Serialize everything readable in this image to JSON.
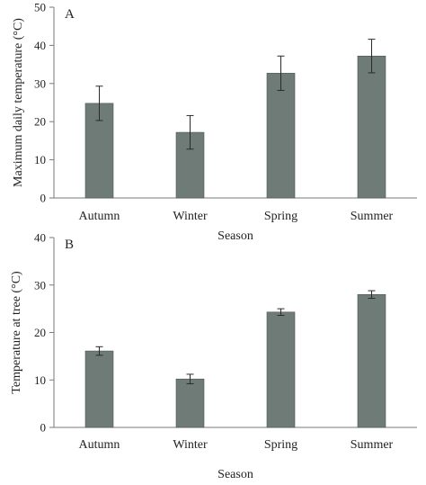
{
  "chart_data": [
    {
      "type": "bar",
      "panel_label": "A",
      "categories": [
        "Autumn",
        "Winter",
        "Spring",
        "Summer"
      ],
      "values": [
        24.8,
        17.2,
        32.7,
        37.2
      ],
      "errors": [
        4.5,
        4.4,
        4.5,
        4.4
      ],
      "xlabel": "Season",
      "ylabel": "Maximum  daily temperature  (°C)",
      "ylim": [
        0,
        50
      ],
      "yticks": [
        0,
        10,
        20,
        30,
        40,
        50
      ],
      "grid": false,
      "bar_color": "#6f7b77"
    },
    {
      "type": "bar",
      "panel_label": "B",
      "categories": [
        "Autumn",
        "Winter",
        "Spring",
        "Summer"
      ],
      "values": [
        16.1,
        10.2,
        24.3,
        28.0
      ],
      "errors": [
        0.9,
        1.0,
        0.7,
        0.8
      ],
      "xlabel": "Season",
      "ylabel": "Temperature  at tree (°C)",
      "ylim": [
        0,
        40
      ],
      "yticks": [
        0,
        10,
        20,
        30,
        40
      ],
      "grid": false,
      "bar_color": "#6f7b77"
    }
  ]
}
